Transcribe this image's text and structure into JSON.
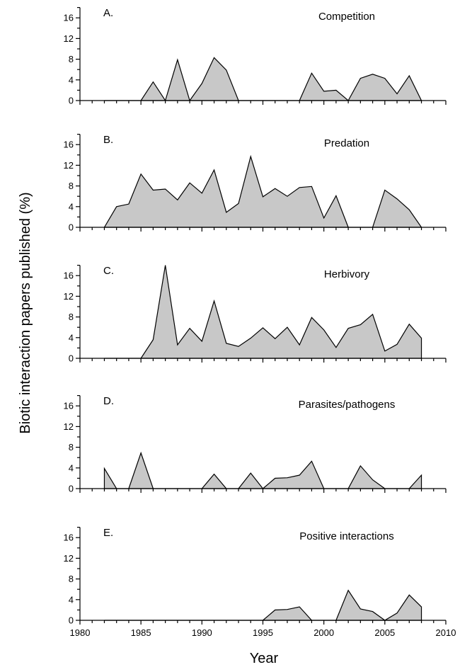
{
  "chart_data": {
    "type": "area",
    "ylabel": "Biotic interaction papers published (%)",
    "xlabel": "Year",
    "xlim": [
      1980,
      2010
    ],
    "x_ticks": [
      1980,
      1985,
      1990,
      1995,
      2000,
      2005,
      2010
    ],
    "ylim": [
      0,
      18
    ],
    "y_ticks": [
      0,
      4,
      8,
      12,
      16
    ],
    "colors": {
      "fill": "#c8c8c8",
      "stroke": "#000000"
    },
    "x": [
      1982,
      1983,
      1984,
      1985,
      1986,
      1987,
      1988,
      1989,
      1990,
      1991,
      1992,
      1993,
      1994,
      1995,
      1996,
      1997,
      1998,
      1999,
      2000,
      2001,
      2002,
      2003,
      2004,
      2005,
      2006,
      2007,
      2008
    ],
    "panels": [
      {
        "letter": "A.",
        "title": "Competition",
        "values": [
          0,
          0,
          0,
          0,
          3.6,
          0,
          7.9,
          0,
          3.3,
          8.3,
          5.9,
          0,
          0,
          0,
          0,
          0,
          0,
          5.3,
          1.8,
          2.0,
          0,
          4.3,
          5.1,
          4.3,
          1.3,
          4.8,
          0
        ]
      },
      {
        "letter": "B.",
        "title": "Predation",
        "values": [
          0,
          4.0,
          4.5,
          10.3,
          7.2,
          7.4,
          5.3,
          8.6,
          6.6,
          11.1,
          2.9,
          4.6,
          13.7,
          5.9,
          7.5,
          6.0,
          7.7,
          7.9,
          1.8,
          6.1,
          0,
          0,
          0,
          7.2,
          5.5,
          3.4,
          0
        ]
      },
      {
        "letter": "C.",
        "title": "Herbivory",
        "values": [
          0,
          0,
          0,
          0,
          3.6,
          18.0,
          2.6,
          5.8,
          3.3,
          11.1,
          2.9,
          2.3,
          3.9,
          5.9,
          3.8,
          6.0,
          2.6,
          7.9,
          5.5,
          2.1,
          5.8,
          6.5,
          8.5,
          1.4,
          2.7,
          6.6,
          3.9
        ]
      },
      {
        "letter": "D.",
        "title": "Parasites/pathogens",
        "values": [
          3.9,
          0,
          0,
          6.9,
          0,
          0,
          0,
          0,
          0,
          2.8,
          0,
          0,
          3.0,
          0,
          2.0,
          2.1,
          2.6,
          5.3,
          0,
          0,
          0,
          4.4,
          1.7,
          0,
          0,
          0,
          2.6
        ]
      },
      {
        "letter": "E.",
        "title": "Positive interactions",
        "values": [
          0,
          0,
          0,
          0,
          0,
          0,
          0,
          0,
          0,
          0,
          0,
          0,
          0,
          0,
          2.0,
          2.1,
          2.6,
          0,
          0,
          0,
          5.8,
          2.2,
          1.7,
          0,
          1.4,
          4.9,
          2.6
        ]
      }
    ]
  }
}
